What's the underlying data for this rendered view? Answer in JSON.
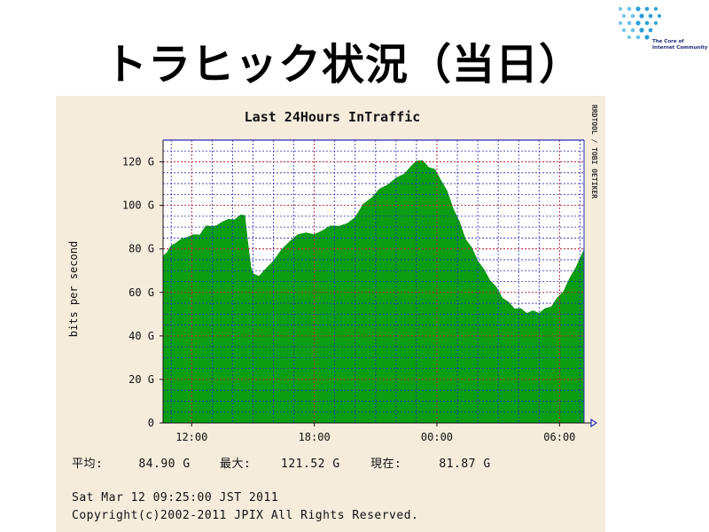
{
  "slide": {
    "title": "トラヒック状況（当日）",
    "logo_text": [
      "The Core of",
      "Internet Community"
    ]
  },
  "chart_data": {
    "type": "area",
    "title": "Last 24Hours InTraffic",
    "ylabel": "bits per second",
    "side_label": "RRDTOOL / TOBI OETIKER",
    "ylim": [
      0,
      130
    ],
    "y_ticks": [
      {
        "value": 0,
        "label": "0"
      },
      {
        "value": 20,
        "label": "20 G"
      },
      {
        "value": 40,
        "label": "40 G"
      },
      {
        "value": 60,
        "label": "60 G"
      },
      {
        "value": 80,
        "label": "80 G"
      },
      {
        "value": 100,
        "label": "100 G"
      },
      {
        "value": 120,
        "label": "120 G"
      }
    ],
    "x_range_hours": [
      10.6,
      31.2
    ],
    "x_ticks": [
      {
        "hour": 12,
        "label": "12:00"
      },
      {
        "hour": 18,
        "label": "18:00"
      },
      {
        "hour": 24,
        "label": "00:00"
      },
      {
        "hour": 30,
        "label": "06:00"
      }
    ],
    "grid": true,
    "series": [
      {
        "color": "#0b9e12",
        "x_hours": [
          10.6,
          10.8,
          11.0,
          11.2,
          11.5,
          11.8,
          12.1,
          12.4,
          12.7,
          13.0,
          13.2,
          13.5,
          13.8,
          14.1,
          14.4,
          14.6,
          14.75,
          14.9,
          15.0,
          15.3,
          15.6,
          16.0,
          16.4,
          16.8,
          17.2,
          17.6,
          18.0,
          18.4,
          18.8,
          19.2,
          19.6,
          20.0,
          20.4,
          20.8,
          21.2,
          21.6,
          22.0,
          22.4,
          22.7,
          23.0,
          23.3,
          23.6,
          23.9,
          24.2,
          24.5,
          24.8,
          25.1,
          25.4,
          25.7,
          26.0,
          26.3,
          26.6,
          26.9,
          27.2,
          27.5,
          27.8,
          28.1,
          28.4,
          28.7,
          29.0,
          29.3,
          29.6,
          29.9,
          30.2,
          30.5,
          30.8,
          31.2
        ],
        "values": [
          76,
          79,
          81,
          83,
          84,
          86,
          86,
          87,
          90,
          91,
          90,
          93,
          93,
          94,
          95,
          96,
          82,
          72,
          68,
          68,
          70,
          75,
          79,
          84,
          86,
          88,
          86,
          89,
          90,
          91,
          91,
          95,
          100,
          104,
          107,
          110,
          112,
          115,
          117,
          121,
          120,
          118,
          116,
          112,
          106,
          99,
          92,
          85,
          80,
          75,
          70,
          66,
          62,
          58,
          55,
          53,
          52,
          51,
          51,
          51,
          52,
          54,
          57,
          61,
          66,
          72,
          79
        ]
      }
    ],
    "stats": [
      {
        "label": "平均:",
        "value": "84.90 G"
      },
      {
        "label": "最大:",
        "value": "121.52 G"
      },
      {
        "label": "現在:",
        "value": "81.87 G"
      }
    ],
    "footer": [
      "Sat Mar 12 09:25:00 JST 2011",
      "Copyright(c)2002-2011 JPIX All Rights Reserved."
    ]
  }
}
